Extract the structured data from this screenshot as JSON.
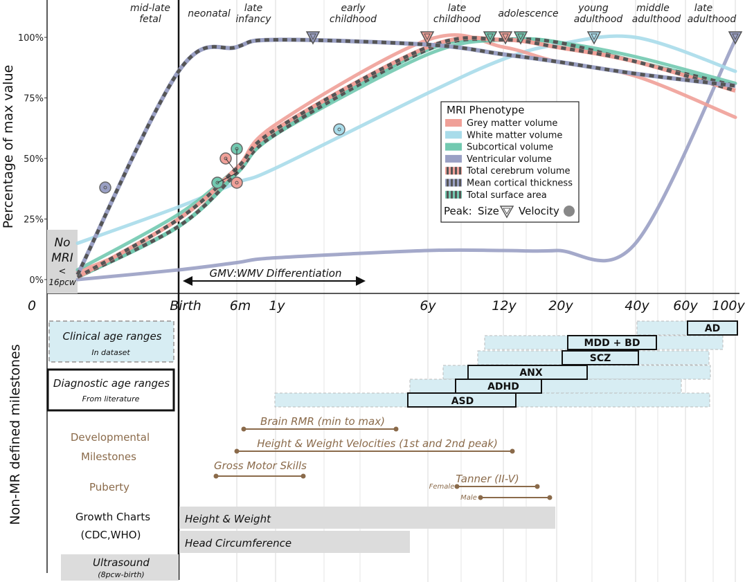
{
  "chart_data": {
    "type": "line",
    "ylabel": "Percentage of max value",
    "xlabel": "",
    "y_ticks": [
      "0%",
      "25%",
      "50%",
      "75%",
      "100%"
    ],
    "ylim": [
      0,
      100
    ],
    "x_ticks": [
      "0",
      "Birth",
      "6m",
      "1y",
      "6y",
      "12y",
      "20y",
      "40y",
      "60y",
      "100y"
    ],
    "x_scale": "log (post-conception age)",
    "grid": "vertical",
    "life_stages": [
      "mid-late fetal",
      "neonatal",
      "late infancy",
      "early childhood",
      "late childhood",
      "adolescence",
      "young adulthood",
      "middle adulthood",
      "late adulthood"
    ],
    "annotation_no_mri": [
      "No",
      "MRI",
      "<",
      "16pcw"
    ],
    "annotation_gmv": "GMV:WMV Differentiation",
    "series": [
      {
        "name": "Grey matter volume",
        "color": "#f0a098",
        "style": "solid",
        "x": [
          "16pcw",
          "Birth",
          "6m",
          "1y",
          "6y",
          "12y",
          "20y",
          "40y",
          "100y"
        ],
        "values": [
          3,
          22,
          46,
          64,
          99,
          96,
          90,
          84,
          67
        ]
      },
      {
        "name": "White matter volume",
        "color": "#a8dcea",
        "style": "solid",
        "x": [
          "16pcw",
          "Birth",
          "6m",
          "1y",
          "6y",
          "12y",
          "20y",
          "40y",
          "100y"
        ],
        "values": [
          15,
          30,
          40,
          46,
          77,
          91,
          97,
          100,
          86
        ]
      },
      {
        "name": "Subcortical volume",
        "color": "#72c9b0",
        "style": "solid",
        "x": [
          "16pcw",
          "Birth",
          "6m",
          "1y",
          "6y",
          "12y",
          "20y",
          "40y",
          "100y"
        ],
        "values": [
          4,
          27,
          46,
          60,
          93,
          99,
          98,
          92,
          81
        ]
      },
      {
        "name": "Ventricular volume",
        "color": "#9aa0c4",
        "style": "solid",
        "x": [
          "16pcw",
          "Birth",
          "6m",
          "1y",
          "6y",
          "12y",
          "20y",
          "40y",
          "100y"
        ],
        "values": [
          0,
          4,
          7,
          9,
          12,
          12,
          12,
          15,
          99
        ]
      },
      {
        "name": "Total cerebrum volume",
        "color": "#f0a098",
        "style": "dashed",
        "x": [
          "16pcw",
          "Birth",
          "6m",
          "1y",
          "6y",
          "12y",
          "20y",
          "40y",
          "100y"
        ],
        "values": [
          1,
          25,
          46,
          62,
          96,
          99,
          96,
          90,
          78
        ]
      },
      {
        "name": "Mean cortical thickness",
        "color": "#9aa0c4",
        "style": "dashed",
        "x": [
          "16pcw",
          "Birth",
          "6m",
          "1y",
          "6y",
          "12y",
          "20y",
          "40y",
          "100y"
        ],
        "values": [
          2,
          86,
          96,
          99,
          97,
          93,
          90,
          85,
          80
        ]
      },
      {
        "name": "Total surface area",
        "color": "#72c9b0",
        "style": "dashed",
        "x": [
          "16pcw",
          "Birth",
          "6m",
          "1y",
          "6y",
          "12y",
          "20y",
          "40y",
          "100y"
        ],
        "values": [
          1,
          22,
          44,
          60,
          95,
          99,
          98,
          90,
          80
        ]
      }
    ],
    "legend": {
      "title": "MRI Phenotype",
      "placement": "right",
      "peak_label": "Peak:",
      "size_label": "Size",
      "velocity_label": "Velocity"
    },
    "peak_size": [
      {
        "series": "Grey matter volume",
        "x": "~5.9y",
        "value": 100
      },
      {
        "series": "White matter volume",
        "x": "~29y",
        "value": 100
      },
      {
        "series": "Subcortical volume",
        "x": "~14y",
        "value": 100
      },
      {
        "series": "Total cerebrum volume",
        "x": "~12y",
        "value": 100
      },
      {
        "series": "Total surface area",
        "x": "~11y",
        "value": 100
      },
      {
        "series": "Mean cortical thickness",
        "x": "~1.7y",
        "value": 100
      },
      {
        "series": "Ventricular volume",
        "x": "100y",
        "value": 100
      }
    ],
    "peak_velocity": [
      {
        "series": "Mean cortical thickness",
        "x": "pre-birth",
        "value": 38
      },
      {
        "series": "Grey matter volume",
        "x": "~5.5m",
        "value": 50
      },
      {
        "series": "Subcortical volume",
        "x": "~6.5m",
        "value": 54
      },
      {
        "series": "Total cerebrum volume",
        "x": "~6.5m",
        "value": 40
      },
      {
        "series": "Total surface area",
        "x": "~4.5m",
        "value": 40
      },
      {
        "series": "White matter volume",
        "x": "~2.9y",
        "value": 62
      }
    ]
  },
  "milestones": {
    "axis_label": "Non-MR defined milestones",
    "clinical_box": {
      "title": "Clinical age ranges",
      "subtitle": "In dataset"
    },
    "diagnostic_box": {
      "title": "Diagnostic age ranges",
      "subtitle": "From literature"
    },
    "disorders": [
      "AD",
      "MDD + BD",
      "SCZ",
      "ANX",
      "ADHD",
      "ASD"
    ],
    "developmental_label": [
      "Developmental",
      "Milestones"
    ],
    "brain_rmr": "Brain RMR (min to max)",
    "height_weight_velocities": "Height & Weight Velocities (1st and 2nd peak)",
    "gross_motor": "Gross Motor Skills",
    "puberty_label": "Puberty",
    "tanner": "Tanner (II-V)",
    "female": "Female",
    "male": "Male",
    "growth_label": [
      "Growth Charts",
      "(CDC,WHO)"
    ],
    "height_weight": "Height & Weight",
    "head_circumference": "Head Circumference",
    "ultrasound": [
      "Ultrasound",
      "(8pcw-birth)"
    ]
  }
}
